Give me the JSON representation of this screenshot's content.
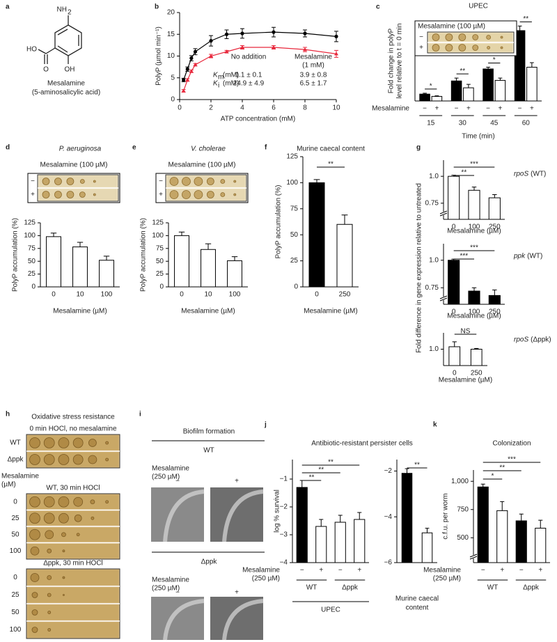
{
  "panels": [
    "a",
    "b",
    "c",
    "d",
    "e",
    "f",
    "g",
    "h",
    "i",
    "j",
    "k"
  ],
  "structure": {
    "amine": "NH",
    "amine_sub": "2",
    "carboxyl_oh": "HO",
    "carbonyl_o": "O",
    "hydroxyl": "OH",
    "name": "Mesalamine",
    "subtitle": "(5-aminosalicylic acid)"
  },
  "oxidative_stress": {
    "title": "Oxidative stress resistance",
    "row_label": [
      "Mesalamine",
      "(µM)"
    ],
    "plates": [
      {
        "title": "0 min HOCl, no mesalamine",
        "rows": [
          "WT",
          "Δppk"
        ]
      },
      {
        "title": "WT, 30 min HOCl",
        "rows": [
          "0",
          "25",
          "50",
          "100"
        ]
      },
      {
        "title": "Δppk, 30 min HOCl",
        "rows": [
          "0",
          "25",
          "50",
          "100"
        ]
      }
    ]
  },
  "biofilm": {
    "title": "Biofilm formation",
    "treatment_label": [
      "Mesalamine",
      "(250 µM)"
    ],
    "treatment": [
      "−",
      "+"
    ],
    "strains": [
      "WT",
      "Δppk"
    ]
  },
  "chart_data": [
    {
      "type": "line",
      "xlabel": "ATP concentration (mM)",
      "ylabel": "PolyP (µmol min⁻¹)",
      "x": [
        0.25,
        0.5,
        0.75,
        1,
        2,
        3,
        4,
        6,
        8,
        10
      ],
      "series": [
        {
          "color": "#000000",
          "values": [
            4.5,
            7,
            9.5,
            11,
            13.5,
            15,
            15.2,
            15.5,
            15.2,
            14.5
          ],
          "errors": [
            0.4,
            0.5,
            0.6,
            0.7,
            1.2,
            1,
            1.1,
            1.1,
            0.8,
            1.2
          ]
        },
        {
          "color": "#e8283c",
          "values": [
            2,
            4.5,
            6.5,
            8,
            10,
            11,
            12,
            12,
            11.5,
            10.5
          ],
          "errors": [
            0.3,
            0.3,
            0.3,
            0.3,
            0.4,
            0.3,
            0.4,
            0.4,
            0.5,
            0.8
          ]
        }
      ],
      "xlim": [
        0,
        10
      ],
      "xticks": [
        0,
        2,
        4,
        6,
        8,
        10
      ],
      "ylim": [
        0,
        20
      ],
      "yticks": [
        0,
        5,
        10,
        15,
        20
      ],
      "kinetics": {
        "no_addition": "No addition",
        "mesalamine": [
          "Mesalamine",
          "(1 mM)"
        ],
        "rows": [
          {
            "symbol": "K",
            "sub": "m",
            "unit": "(mM)",
            "no_addition": "1.1 ± 0.1",
            "mesalamine": "3.9 ± 0.8"
          },
          {
            "symbol": "K",
            "sub": "i",
            "unit": "(mM)",
            "no_addition": "24.9 ± 4.9",
            "mesalamine": "6.5 ± 1.7"
          }
        ]
      }
    },
    {
      "type": "bar",
      "title": "UPEC",
      "ylabel": [
        "Fold change in polyP",
        "level relative to t = 0 min"
      ],
      "xlabel": "Time (min)",
      "categories": [
        "15",
        "30",
        "45",
        "60"
      ],
      "row_label": "Mesalamine",
      "row_ticks": [
        "−",
        "+"
      ],
      "series": [
        {
          "color": "#000000",
          "values": [
            12,
            35,
            56,
            123
          ],
          "errors": [
            1.5,
            5,
            3,
            8
          ]
        },
        {
          "color": "#ffffff",
          "values": [
            8,
            23,
            36,
            59
          ],
          "errors": [
            1,
            6,
            4,
            8
          ]
        }
      ],
      "ylim": [
        0,
        140
      ],
      "significance": [
        "*",
        "**",
        "*",
        "**"
      ],
      "plate": {
        "label": "Mesalamine (100 µM)",
        "rows": [
          "−",
          "+"
        ]
      }
    },
    {
      "type": "bar",
      "title": "P. aeruginosa",
      "ylabel": "PolyP accumulation (%)",
      "xlabel": "Mesalamine (µM)",
      "categories": [
        "0",
        "10",
        "100"
      ],
      "values": [
        98,
        78,
        52
      ],
      "errors": [
        7,
        9,
        8
      ],
      "colors": [
        "#ffffff",
        "#ffffff",
        "#ffffff"
      ],
      "ylim": [
        0,
        125
      ],
      "yticks": [
        0,
        25,
        50,
        75,
        100,
        125
      ],
      "plate": {
        "label": "Mesalamine (100 µM)",
        "rows": [
          "−",
          "+"
        ]
      }
    },
    {
      "type": "bar",
      "title": "V. cholerae",
      "ylabel": "PolyP accumulation (%)",
      "xlabel": "Mesalamine (µM)",
      "categories": [
        "0",
        "10",
        "100"
      ],
      "values": [
        100,
        73,
        51
      ],
      "errors": [
        7,
        11,
        8
      ],
      "colors": [
        "#ffffff",
        "#ffffff",
        "#ffffff"
      ],
      "ylim": [
        0,
        125
      ],
      "yticks": [
        0,
        25,
        50,
        75,
        100,
        125
      ],
      "plate": {
        "label": "Mesalamine (100 µM)",
        "rows": [
          "−",
          "+"
        ]
      }
    },
    {
      "type": "bar",
      "title": "Murine caecal content",
      "ylabel": "PolyP accumulation (%)",
      "xlabel": "Mesalamine (µM)",
      "categories": [
        "0",
        "250"
      ],
      "values": [
        100,
        60
      ],
      "errors": [
        3,
        9
      ],
      "colors": [
        "#000000",
        "#ffffff"
      ],
      "ylim": [
        0,
        125
      ],
      "yticks": [
        0,
        25,
        50,
        75,
        100,
        125
      ],
      "significance": [
        "**"
      ]
    },
    {
      "type": "bar",
      "title_gene": "rpoS",
      "title_strain": "(WT)",
      "ylabel": "Fold difference in gene expression relative to untreated",
      "xlabel": "Mesalamine (µM)",
      "categories": [
        "0",
        "100",
        "250"
      ],
      "values": [
        1.0,
        0.87,
        0.8
      ],
      "errors": [
        0.01,
        0.03,
        0.03
      ],
      "colors": [
        "#ffffff",
        "#ffffff",
        "#ffffff"
      ],
      "ylim": [
        0.6,
        1.15
      ],
      "yticks": [
        0.75,
        {
          "value": 1.0,
          "label": "1.0"
        }
      ],
      "significance": [
        "**",
        "***"
      ]
    },
    {
      "type": "bar",
      "title_gene": "ppk",
      "title_strain": "(WT)",
      "xlabel": "Mesalamine (µM)",
      "categories": [
        "0",
        "100",
        "250"
      ],
      "values": [
        1.0,
        0.72,
        0.68
      ],
      "errors": [
        0.01,
        0.03,
        0.05
      ],
      "colors": [
        "#000000",
        "#000000",
        "#000000"
      ],
      "ylim": [
        0.6,
        1.15
      ],
      "yticks": [
        0.75,
        {
          "value": 1.0,
          "label": "1.0"
        }
      ],
      "significance": [
        "***",
        "***"
      ]
    },
    {
      "type": "bar",
      "title_gene": "rpoS",
      "title_strain": "(Δppk)",
      "xlabel": "Mesalamine (µM)",
      "categories": [
        "0",
        "250"
      ],
      "values": [
        1.03,
        1.0
      ],
      "errors": [
        0.06,
        0.01
      ],
      "colors": [
        "#ffffff",
        "#ffffff"
      ],
      "ylim": [
        0.8,
        1.2
      ],
      "yticks": [
        {
          "value": 1.0,
          "label": "1.0"
        }
      ],
      "significance": [
        "NS"
      ]
    },
    {
      "type": "bar",
      "title": "Antibiotic-resistant persister cells",
      "ylabel": "log % survival",
      "categories": [
        "−",
        "+",
        "−",
        "+"
      ],
      "row_label": [
        "Mesalamine",
        "(250 µM)"
      ],
      "groups": [
        "WT",
        "Δppk"
      ],
      "group_title": "UPEC",
      "values": [
        -1.3,
        -2.7,
        -2.55,
        -2.45
      ],
      "errors": [
        0.25,
        0.25,
        0.25,
        0.25
      ],
      "colors": [
        "#000000",
        "#ffffff",
        "#ffffff",
        "#ffffff"
      ],
      "ylim": [
        -4,
        -0.3
      ],
      "yticks": [
        {
          "value": -1,
          "label": "−1"
        },
        {
          "value": -2,
          "label": "−2"
        },
        {
          "value": -3,
          "label": "−3"
        },
        {
          "value": -4,
          "label": "−4"
        }
      ],
      "significance": [
        "**",
        "**",
        "**"
      ]
    },
    {
      "type": "bar",
      "xlabel": [
        "Murine caecal",
        "content"
      ],
      "categories": [
        null,
        null
      ],
      "values": [
        -2.1,
        -4.7
      ],
      "errors": [
        0.2,
        0.2
      ],
      "colors": [
        "#000000",
        "#ffffff"
      ],
      "ylim": [
        -6,
        -1.5
      ],
      "yticks": [
        {
          "value": -2,
          "label": "−2"
        },
        {
          "value": -4,
          "label": "−4"
        },
        {
          "value": -6,
          "label": "−6"
        }
      ],
      "significance": [
        "**"
      ]
    },
    {
      "type": "bar",
      "title": "Colonization",
      "ylabel": "c.f.u. per worm",
      "categories": [
        "−",
        "+",
        "−",
        "+"
      ],
      "row_label": [
        "Mesalamine",
        "(250 µM)"
      ],
      "groups": [
        "WT",
        "Δppk"
      ],
      "values": [
        950,
        740,
        650,
        585
      ],
      "errors": [
        25,
        80,
        60,
        70
      ],
      "colors": [
        "#000000",
        "#ffffff",
        "#000000",
        "#ffffff"
      ],
      "ylim": [
        280,
        1100
      ],
      "yticks": [
        500,
        750,
        {
          "value": 1000,
          "label": "1,000"
        }
      ],
      "significance": [
        "*",
        "**",
        "***"
      ]
    }
  ]
}
